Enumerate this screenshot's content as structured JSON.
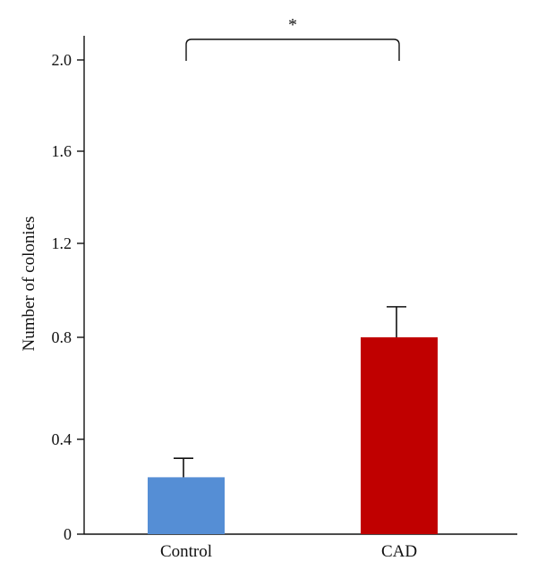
{
  "chart_data": {
    "type": "bar",
    "categories": [
      "Control",
      "CAD"
    ],
    "values": [
      0.24,
      0.8
    ],
    "error": [
      0.08,
      0.13
    ],
    "colors": [
      "#558ed5",
      "#c00000"
    ],
    "xlabel": "",
    "ylabel": "Number of colonies",
    "ylim": [
      0,
      2.0
    ],
    "yticks": [
      0,
      0.4,
      0.8,
      1.2,
      1.6,
      2.0
    ],
    "ytick_labels": [
      "0",
      "0.4",
      "0.8",
      "1.2",
      "1.6",
      "2.0"
    ],
    "significance": {
      "between": [
        "Control",
        "CAD"
      ],
      "label": "*"
    },
    "grid": false,
    "legend": "none"
  }
}
